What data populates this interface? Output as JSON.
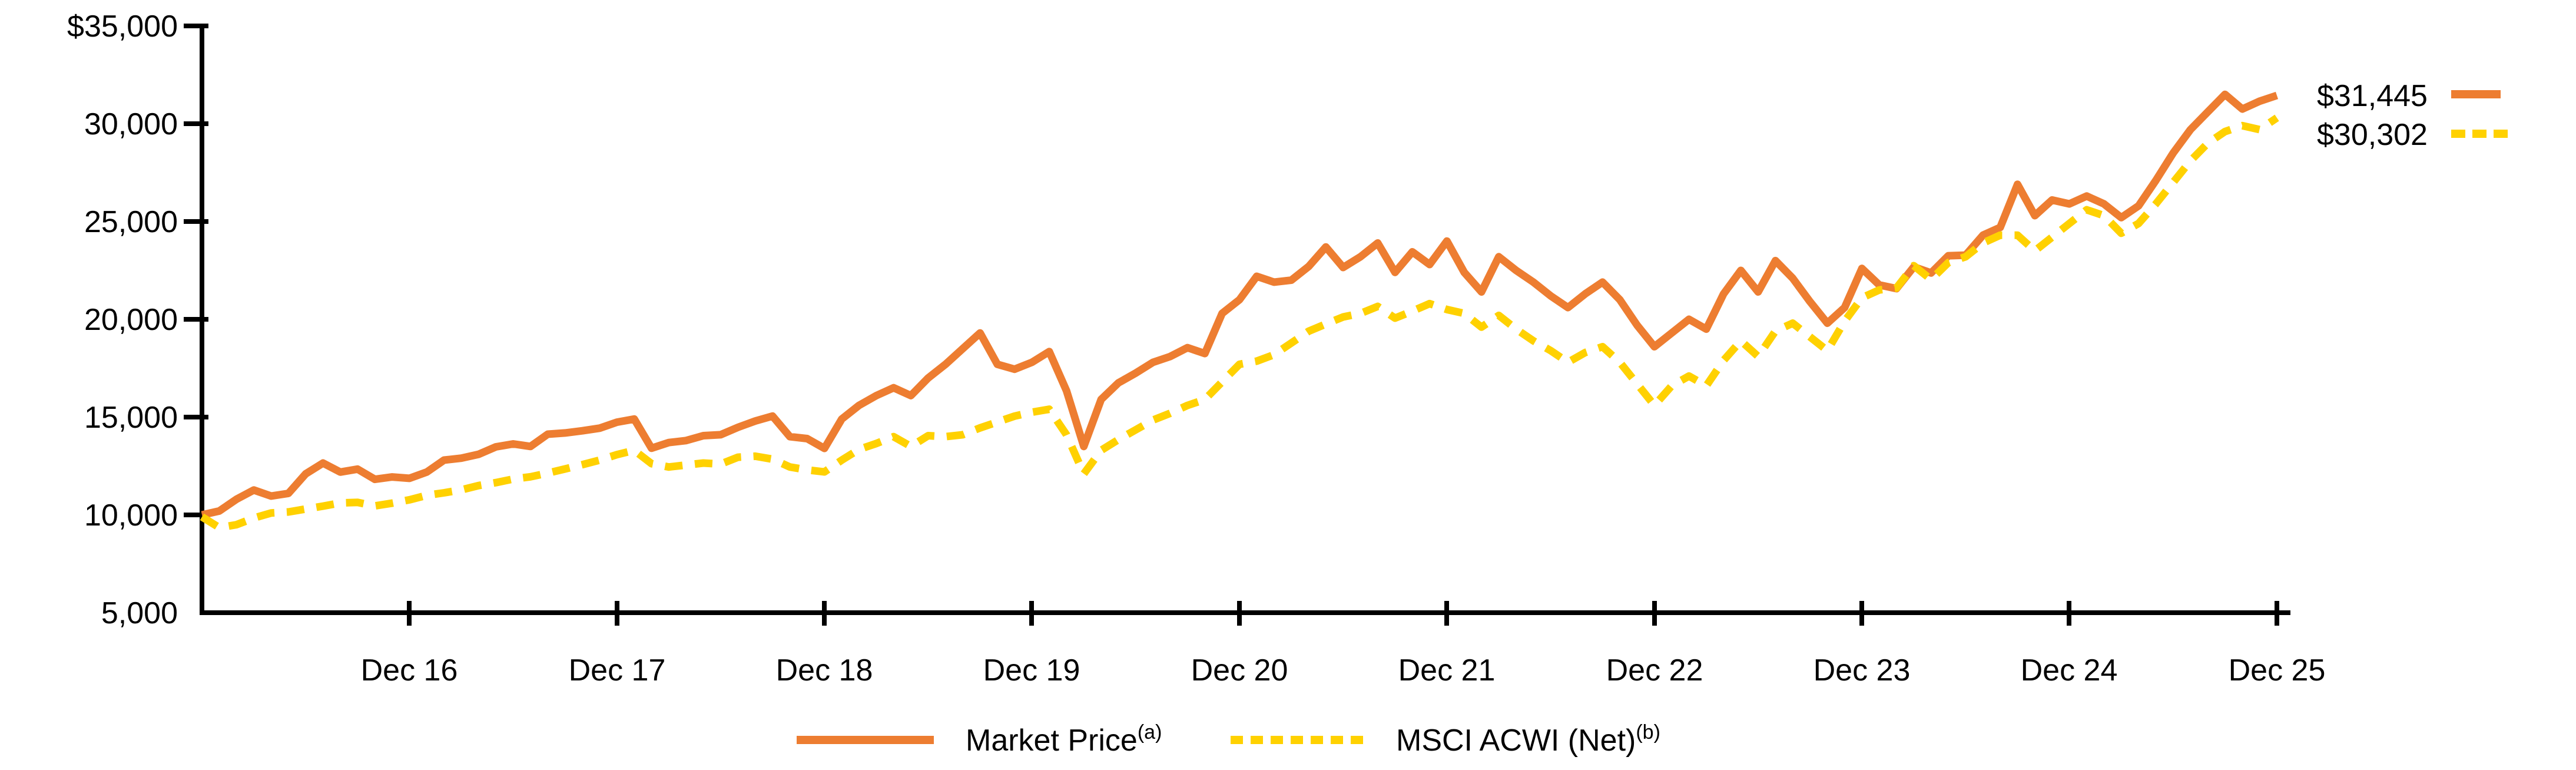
{
  "chart_data": {
    "type": "line",
    "title": "",
    "description": "Growth of $10,000 line chart, two series, Dec 2015 through Dec 2025, monthly points",
    "grid": "off",
    "legend_position": "bottom-center",
    "background_color": "#ffffff",
    "axis_color": "#000000",
    "ylim": [
      5000,
      35000
    ],
    "y_tick_values": [
      35000,
      30000,
      25000,
      20000,
      15000,
      10000,
      5000
    ],
    "y_tick_labels": [
      "$35,000",
      "30,000",
      "25,000",
      "20,000",
      "15,000",
      "10,000",
      "5,000"
    ],
    "x_tick_labels": [
      "Dec 16",
      "Dec 17",
      "Dec 18",
      "Dec 19",
      "Dec 20",
      "Dec 21",
      "Dec 22",
      "Dec 23",
      "Dec 24",
      "Dec 25"
    ],
    "points_per_series": 121,
    "series": [
      {
        "name": "Market Price",
        "superscript": "(a)",
        "color": "#ED7D31",
        "style": "solid",
        "end_label": "$31,445",
        "end_value": 31445,
        "values": [
          10000,
          10200,
          10800,
          11270,
          10965,
          11100,
          12100,
          12650,
          12190,
          12340,
          11820,
          11940,
          11870,
          12190,
          12800,
          12900,
          13100,
          13480,
          13630,
          13500,
          14125,
          14190,
          14300,
          14435,
          14740,
          14900,
          13410,
          13700,
          13800,
          14050,
          14100,
          14480,
          14800,
          15050,
          14000,
          13900,
          13400,
          14900,
          15600,
          16100,
          16500,
          16100,
          17000,
          17700,
          18500,
          19300,
          17700,
          17450,
          17800,
          18350,
          16350,
          13500,
          15900,
          16750,
          17250,
          17800,
          18100,
          18550,
          18250,
          20300,
          21000,
          22200,
          21900,
          22000,
          22700,
          23700,
          22650,
          23200,
          23900,
          22400,
          23450,
          22800,
          24000,
          22400,
          21400,
          23200,
          22500,
          21900,
          21200,
          20600,
          21300,
          21900,
          21000,
          19700,
          18600,
          19300,
          20000,
          19500,
          21300,
          22500,
          21400,
          23000,
          22100,
          20900,
          19800,
          20600,
          22600,
          21760,
          21570,
          22680,
          22370,
          23250,
          23280,
          24300,
          24700,
          26900,
          25300,
          26100,
          25900,
          26300,
          25900,
          25200,
          25800,
          27100,
          28500,
          29700,
          30600,
          31500,
          30750,
          31150,
          31445
        ]
      },
      {
        "name": "MSCI ACWI (Net)",
        "superscript": "(b)",
        "color": "#FFD100",
        "style": "dashed",
        "end_label": "$30,302",
        "end_value": 30302,
        "values": [
          9900,
          9350,
          9500,
          9840,
          10100,
          10150,
          10300,
          10450,
          10610,
          10640,
          10460,
          10600,
          10770,
          11000,
          11130,
          11280,
          11500,
          11650,
          11835,
          11950,
          12140,
          12350,
          12570,
          12800,
          13080,
          13300,
          12620,
          12450,
          12550,
          12650,
          12600,
          12950,
          13000,
          12850,
          12450,
          12300,
          12200,
          12800,
          13350,
          13650,
          14000,
          13500,
          14050,
          14000,
          14100,
          14450,
          14750,
          15050,
          15250,
          15400,
          14100,
          12100,
          13300,
          13850,
          14350,
          14850,
          15200,
          15600,
          15900,
          16800,
          17700,
          17860,
          18190,
          18790,
          19390,
          19760,
          20120,
          20300,
          20660,
          20060,
          20420,
          20800,
          20500,
          20300,
          19600,
          20200,
          19500,
          18900,
          18400,
          17800,
          18300,
          18600,
          17800,
          16700,
          15600,
          16600,
          17100,
          16600,
          17900,
          18900,
          18100,
          19400,
          19800,
          19100,
          18400,
          19900,
          21100,
          21500,
          21600,
          22740,
          22030,
          22900,
          23200,
          23900,
          24300,
          24300,
          23500,
          24200,
          24900,
          25600,
          25300,
          24400,
          24900,
          25900,
          27000,
          28100,
          29000,
          29600,
          29900,
          29700,
          30302
        ]
      }
    ]
  }
}
